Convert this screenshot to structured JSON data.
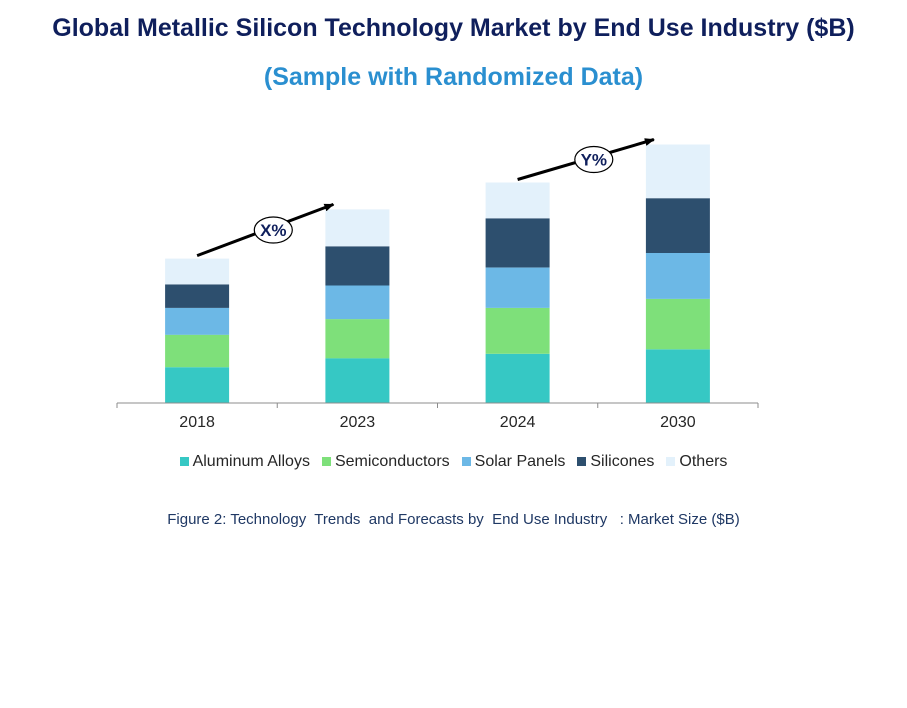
{
  "header": {
    "title": "Global Metallic Silicon Technology Market by End Use Industry ($B)",
    "subtitle": "(Sample with Randomized Data)"
  },
  "caption": {
    "text": "Figure 2: Technology  Trends  and Forecasts by  End Use Industry   : Market Size ($B)"
  },
  "colors": {
    "title": "#0f1f5c",
    "subtitle": "#2a8fd0"
  },
  "chart_data": {
    "type": "bar",
    "stacked": true,
    "title": "Global Metallic Silicon Technology Market by End Use Industry ($B)",
    "categories": [
      "2018",
      "2023",
      "2024",
      "2030"
    ],
    "series": [
      {
        "name": "Aluminum Alloys",
        "color": "#36c8c4",
        "values": [
          32,
          40,
          44,
          48
        ]
      },
      {
        "name": "Semiconductors",
        "color": "#7ee07a",
        "values": [
          29,
          35,
          41,
          45
        ]
      },
      {
        "name": "Solar Panels",
        "color": "#6cb8e6",
        "values": [
          24,
          30,
          36,
          41
        ]
      },
      {
        "name": "Silicones",
        "color": "#2d4f6e",
        "values": [
          21,
          35,
          44,
          49
        ]
      },
      {
        "name": "Others",
        "color": "#e3f1fb",
        "values": [
          23,
          33,
          32,
          48
        ]
      }
    ],
    "ylim": [
      0,
      235
    ],
    "grid": false,
    "legend_position": "bottom",
    "annotations": [
      {
        "label": "X%",
        "from": "2018",
        "to": "2023"
      },
      {
        "label": "Y%",
        "from": "2024",
        "to": "2030"
      }
    ]
  }
}
